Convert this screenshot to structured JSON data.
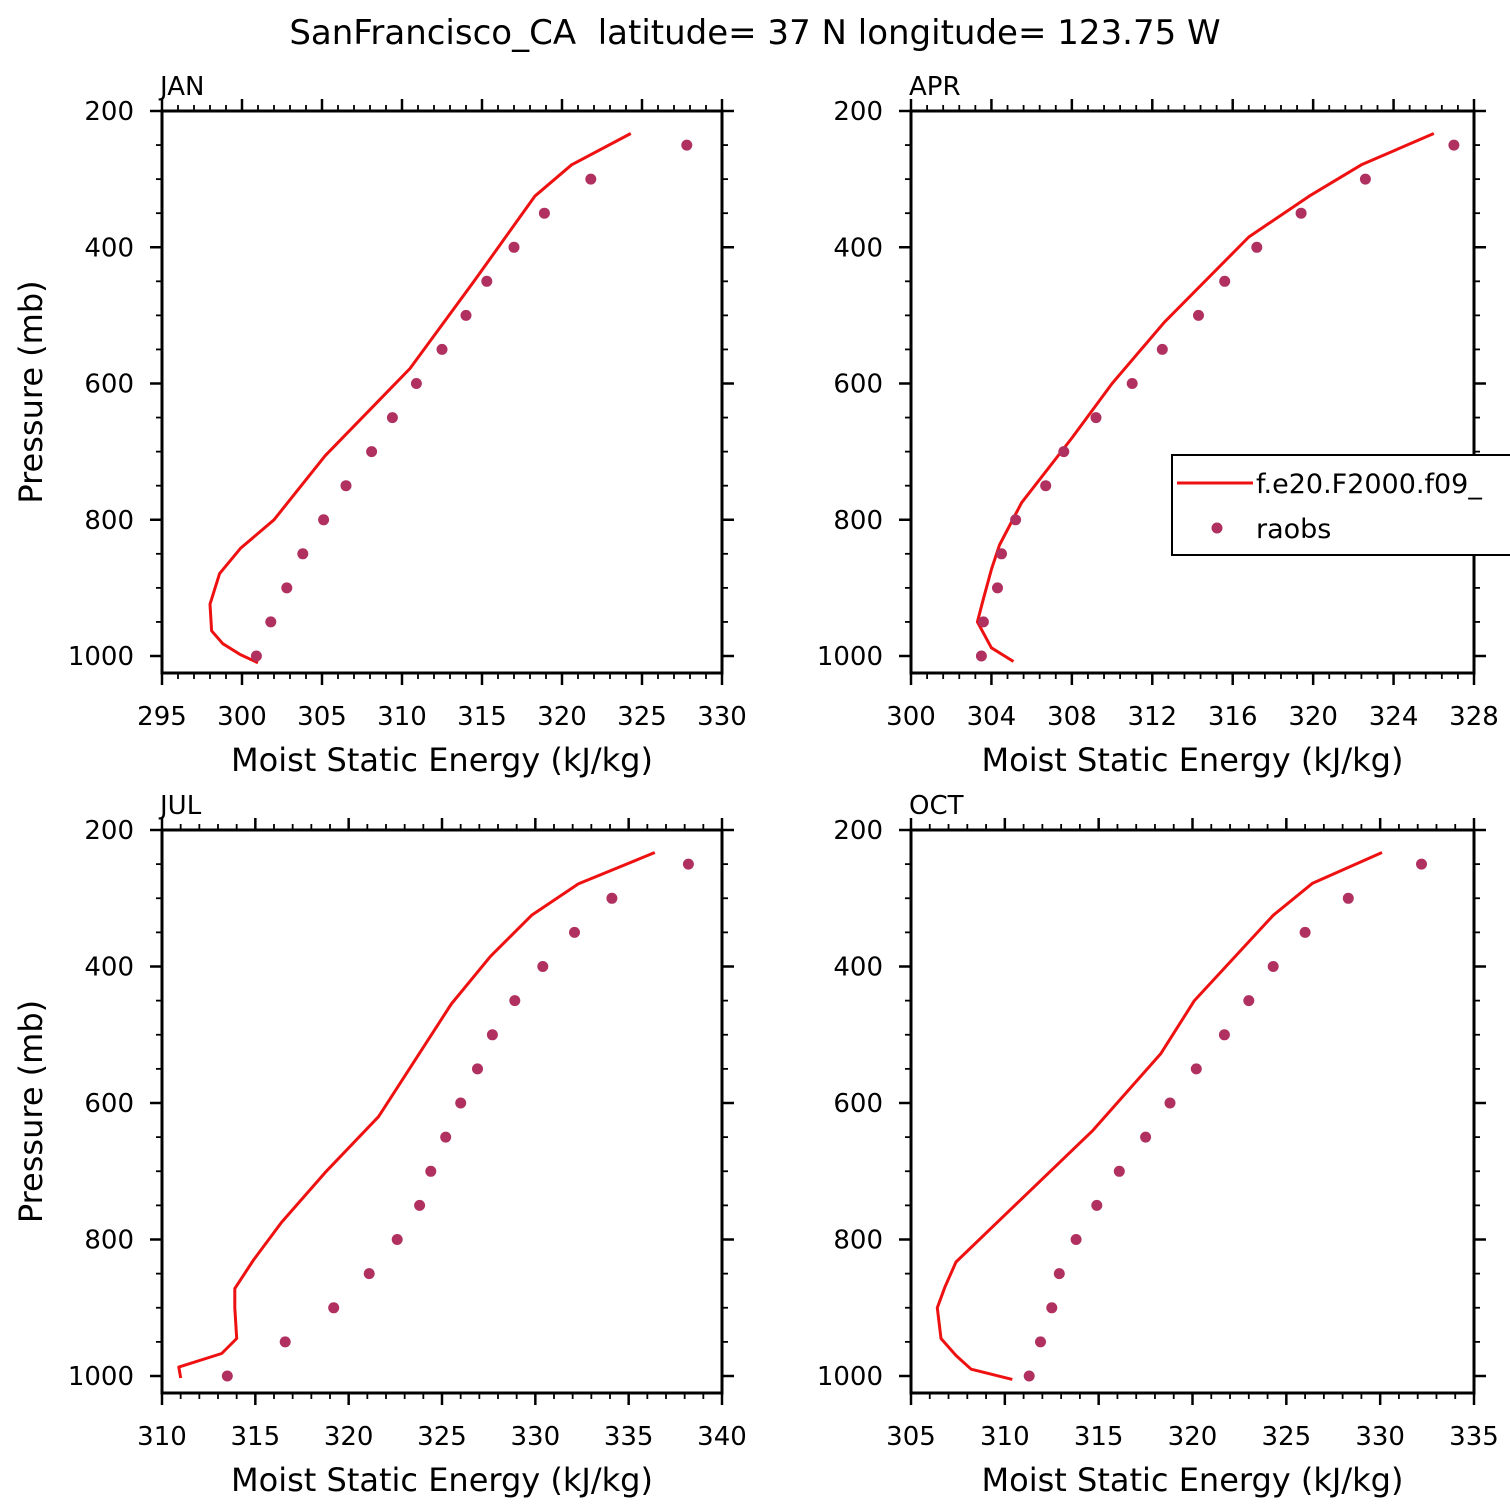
{
  "figure_title": "SanFrancisco_CA  latitude= 37 N longitude= 123.75 W",
  "colors": {
    "model": "#ee1111",
    "obs": "#b03060",
    "axes": "#000000"
  },
  "legend": {
    "model_label": "f.e20.F2000.f09_",
    "obs_label": "raobs"
  },
  "chart_data": [
    {
      "type": "line",
      "title": "JAN",
      "xlabel": "Moist Static Energy (kJ/kg)",
      "ylabel": "Pressure (mb)",
      "xlim": [
        295,
        330
      ],
      "ylim": [
        1000,
        200
      ],
      "xticks": [
        "295",
        "300",
        "305",
        "310",
        "315",
        "320",
        "325",
        "330"
      ],
      "yticks": [
        "200",
        "400",
        "600",
        "800",
        "1000"
      ],
      "series": [
        {
          "name": "f.e20.F2000.f09_",
          "style": "line",
          "x": [
            324.3,
            320.6,
            318.3,
            314.5,
            310.5,
            305.2,
            302.0,
            299.9,
            298.6,
            298.0,
            298.1,
            298.8,
            299.9,
            301.0
          ],
          "y": [
            233,
            279,
            325,
            450,
            578,
            706,
            800,
            842,
            879,
            924,
            963,
            982,
            998,
            1010
          ]
        },
        {
          "name": "raobs",
          "style": "points",
          "x": [
            327.8,
            321.8,
            318.9,
            317.0,
            315.3,
            314.0,
            312.5,
            310.9,
            309.4,
            308.1,
            306.5,
            305.1,
            303.8,
            302.8,
            301.8,
            300.9
          ],
          "y": [
            250,
            300,
            350,
            400,
            450,
            500,
            550,
            600,
            650,
            700,
            750,
            800,
            850,
            900,
            950,
            1000
          ]
        }
      ]
    },
    {
      "type": "line",
      "title": "APR",
      "xlabel": "Moist Static Energy (kJ/kg)",
      "ylabel": "",
      "xlim": [
        300,
        328
      ],
      "ylim": [
        1000,
        200
      ],
      "xticks": [
        "300",
        "304",
        "308",
        "312",
        "316",
        "320",
        "324",
        "328"
      ],
      "yticks": [
        "200",
        "400",
        "600",
        "800",
        "1000"
      ],
      "legend_position": "right",
      "series": [
        {
          "name": "f.e20.F2000.f09_",
          "style": "line",
          "x": [
            326.0,
            322.4,
            319.8,
            316.8,
            312.6,
            310.0,
            308.0,
            305.5,
            304.4,
            304.0,
            303.6,
            303.3,
            304.0,
            305.1
          ],
          "y": [
            233,
            279,
            325,
            385,
            510,
            600,
            680,
            775,
            837,
            873,
            916,
            950,
            988,
            1008
          ]
        },
        {
          "name": "raobs",
          "style": "points",
          "x": [
            327.0,
            322.6,
            319.4,
            317.2,
            315.6,
            314.3,
            312.5,
            311.0,
            309.2,
            307.6,
            306.7,
            305.2,
            304.5,
            304.3,
            303.6,
            303.5
          ],
          "y": [
            250,
            300,
            350,
            400,
            450,
            500,
            550,
            600,
            650,
            700,
            750,
            800,
            850,
            900,
            950,
            1000
          ]
        }
      ]
    },
    {
      "type": "line",
      "title": "JUL",
      "xlabel": "Moist Static Energy (kJ/kg)",
      "ylabel": "Pressure (mb)",
      "xlim": [
        310,
        340
      ],
      "ylim": [
        1000,
        200
      ],
      "xticks": [
        "310",
        "315",
        "320",
        "325",
        "330",
        "335",
        "340"
      ],
      "yticks": [
        "200",
        "400",
        "600",
        "800",
        "1000"
      ],
      "series": [
        {
          "name": "f.e20.F2000.f09_",
          "style": "line",
          "x": [
            336.4,
            332.3,
            329.8,
            327.6,
            325.5,
            321.6,
            318.8,
            316.4,
            314.9,
            313.9,
            313.9,
            314.0,
            313.2,
            310.9,
            311.0
          ],
          "y": [
            233,
            279,
            325,
            385,
            455,
            620,
            700,
            775,
            830,
            872,
            900,
            945,
            967,
            987,
            1003
          ]
        },
        {
          "name": "raobs",
          "style": "points",
          "x": [
            338.2,
            334.1,
            332.1,
            330.4,
            328.9,
            327.7,
            326.9,
            326.0,
            325.2,
            324.4,
            323.8,
            322.6,
            321.1,
            319.2,
            316.6,
            313.5
          ],
          "y": [
            250,
            300,
            350,
            400,
            450,
            500,
            550,
            600,
            650,
            700,
            750,
            800,
            850,
            900,
            950,
            1000
          ]
        }
      ]
    },
    {
      "type": "line",
      "title": "OCT",
      "xlabel": "Moist Static Energy (kJ/kg)",
      "ylabel": "",
      "xlim": [
        305,
        335
      ],
      "ylim": [
        1000,
        200
      ],
      "xticks": [
        "305",
        "310",
        "315",
        "320",
        "325",
        "330",
        "335"
      ],
      "yticks": [
        "200",
        "400",
        "600",
        "800",
        "1000"
      ],
      "series": [
        {
          "name": "f.e20.F2000.f09_",
          "style": "line",
          "x": [
            330.1,
            326.4,
            324.3,
            320.1,
            318.3,
            314.7,
            309.4,
            307.4,
            306.8,
            306.4,
            306.6,
            307.4,
            308.2,
            310.4
          ],
          "y": [
            233,
            278,
            325,
            450,
            528,
            640,
            780,
            833,
            870,
            900,
            945,
            970,
            990,
            1005
          ]
        },
        {
          "name": "raobs",
          "style": "points",
          "x": [
            332.2,
            328.3,
            326.0,
            324.3,
            323.0,
            321.7,
            320.2,
            318.8,
            317.5,
            316.1,
            314.9,
            313.8,
            312.9,
            312.5,
            311.9,
            311.3
          ],
          "y": [
            250,
            300,
            350,
            400,
            450,
            500,
            550,
            600,
            650,
            700,
            750,
            800,
            850,
            900,
            950,
            1000
          ]
        }
      ]
    }
  ]
}
